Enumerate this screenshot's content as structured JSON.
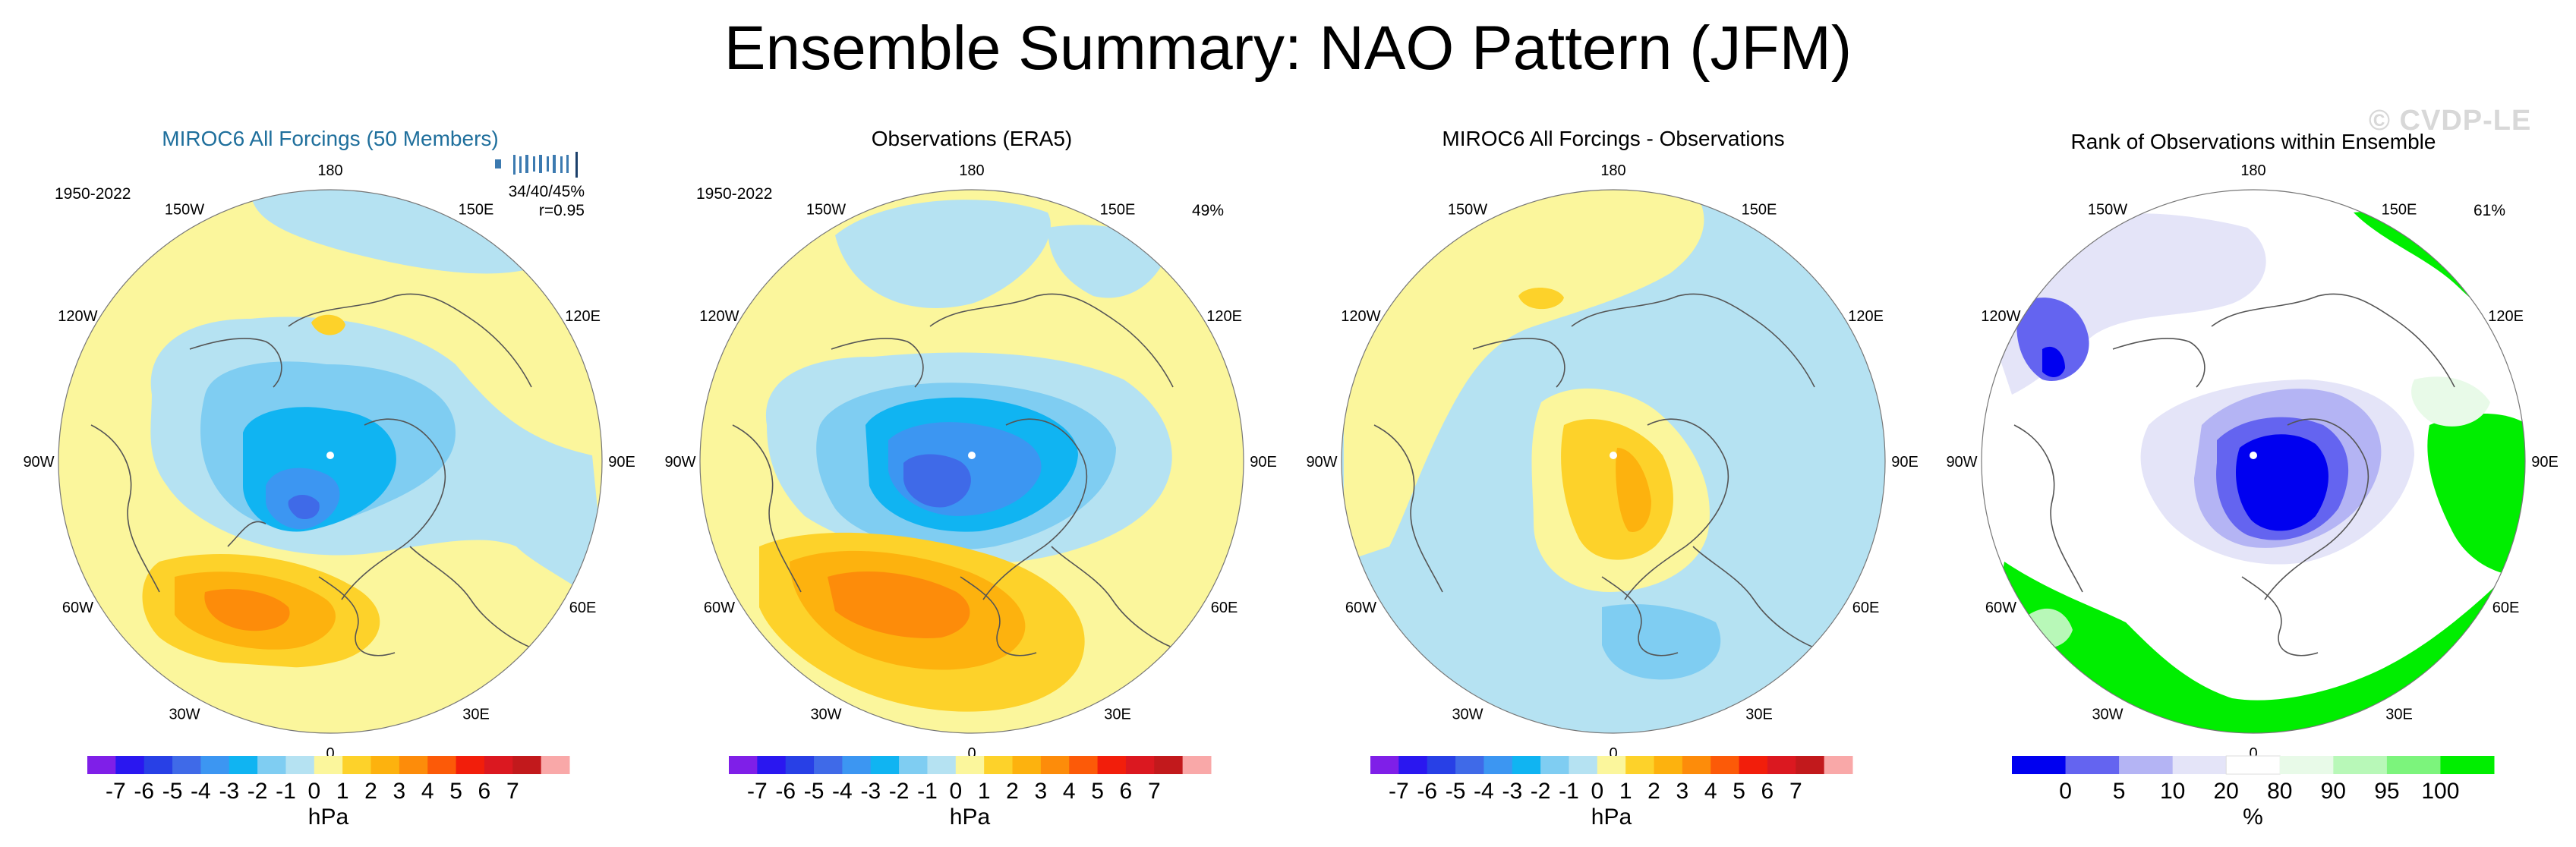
{
  "title": "Ensemble Summary: NAO Pattern (JFM)",
  "watermark": "© CVDP-LE",
  "colors": {
    "hpa_scale": [
      "#7f1fe8",
      "#2a17f0",
      "#2840e6",
      "#3f6ae8",
      "#3c96f2",
      "#10b4f2",
      "#7fcdf2",
      "#b5e2f2",
      "#fbf69c",
      "#fdd22a",
      "#fdb20e",
      "#fd8c0a",
      "#fc5a08",
      "#f21e0b",
      "#db1820",
      "#c2191c",
      "#f9a8a8"
    ],
    "pct_scale": [
      "#0000f0",
      "#6464f0",
      "#b4b4f4",
      "#e4e4f8",
      "#ffffff",
      "#e8fae8",
      "#b8f8b8",
      "#7cf47c",
      "#00ee00"
    ],
    "coast": "#555555"
  },
  "longitude_labels": [
    "180",
    "150E",
    "120E",
    "90E",
    "60E",
    "30E",
    "0",
    "30W",
    "60W",
    "90W",
    "120W",
    "150W"
  ],
  "chart_data": [
    {
      "type": "heatmap",
      "title": "MIROC6 All Forcings (50 Members)",
      "title_color": "#1f6f9c",
      "period": "1950-2022",
      "stat_line1": "34/40/45%",
      "stat_line2": "r=0.95",
      "member_ticks": "1",
      "colorbar_label": "hPa",
      "colorbar_ticks": [
        "-7",
        "-6",
        "-5",
        "-4",
        "-3",
        "-2",
        "-1",
        "0",
        "1",
        "2",
        "3",
        "4",
        "5",
        "6",
        "7"
      ]
    },
    {
      "type": "heatmap",
      "title": "Observations (ERA5)",
      "title_color": "#000000",
      "period": "1950-2022",
      "stat_line1": "49%",
      "stat_line2": "",
      "colorbar_label": "hPa",
      "colorbar_ticks": [
        "-7",
        "-6",
        "-5",
        "-4",
        "-3",
        "-2",
        "-1",
        "0",
        "1",
        "2",
        "3",
        "4",
        "5",
        "6",
        "7"
      ]
    },
    {
      "type": "heatmap",
      "title": "MIROC6 All Forcings - Observations",
      "title_color": "#000000",
      "period": "",
      "stat_line1": "",
      "stat_line2": "",
      "colorbar_label": "hPa",
      "colorbar_ticks": [
        "-7",
        "-6",
        "-5",
        "-4",
        "-3",
        "-2",
        "-1",
        "0",
        "1",
        "2",
        "3",
        "4",
        "5",
        "6",
        "7"
      ]
    },
    {
      "type": "heatmap",
      "title": "Rank of Observations within Ensemble",
      "title_color": "#000000",
      "period": "",
      "stat_line1": "61%",
      "stat_line2": "",
      "colorbar_label": "%",
      "colorbar_ticks": [
        "0",
        "5",
        "10",
        "20",
        "80",
        "90",
        "95",
        "100"
      ]
    }
  ]
}
